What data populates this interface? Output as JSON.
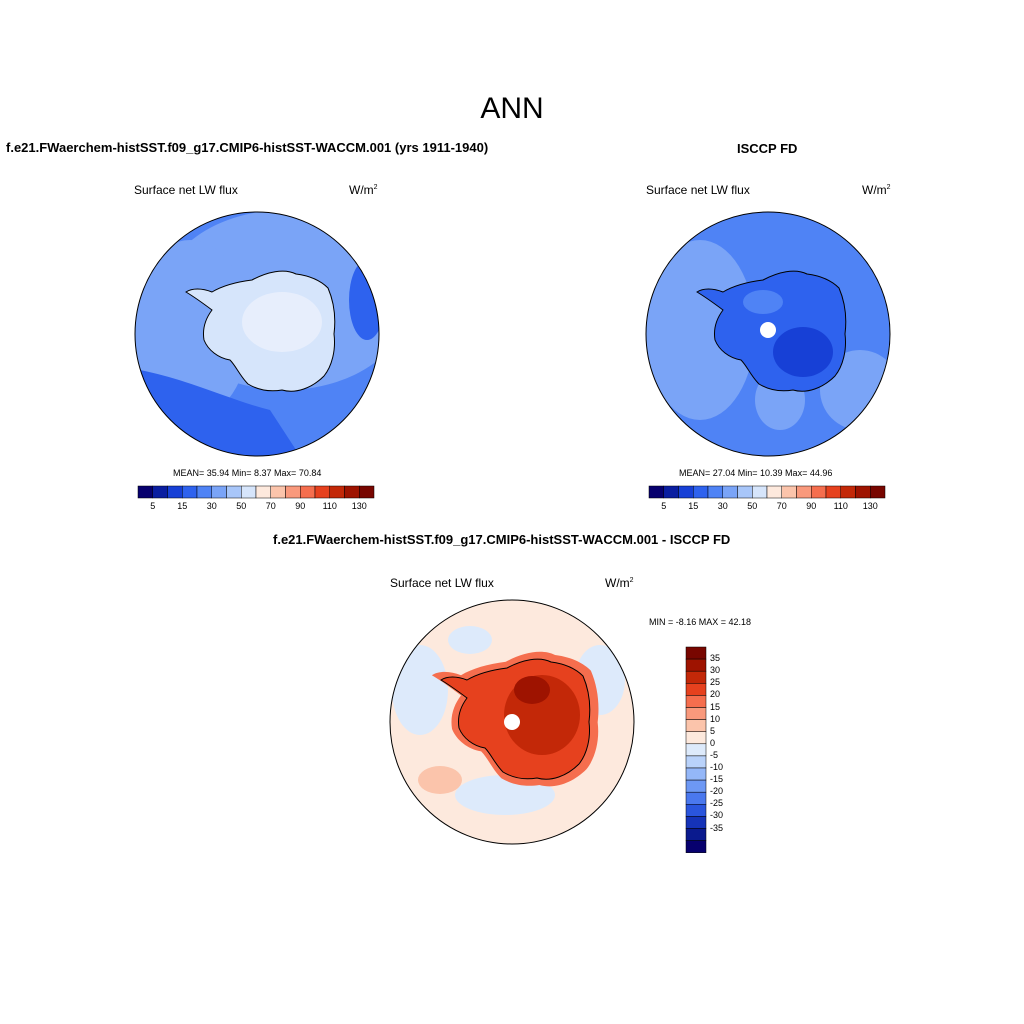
{
  "page": {
    "title": "ANN"
  },
  "panels": {
    "model": {
      "title": "f.e21.FWaerchem-histSST.f09_g17.CMIP6-histSST-WACCM.001 (yrs 1911-1940)",
      "variable": "Surface net LW flux",
      "units_base": "W/m",
      "units_exp": "2",
      "stats": "MEAN=  35.94  Min=   8.37  Max=  70.84"
    },
    "obs": {
      "title": "ISCCP FD",
      "variable": "Surface net LW flux",
      "units_base": "W/m",
      "units_exp": "2",
      "stats": "MEAN=  27.04  Min=  10.39  Max=  44.96"
    },
    "diff": {
      "title": "f.e21.FWaerchem-histSST.f09_g17.CMIP6-histSST-WACCM.001 - ISCCP FD",
      "variable": "Surface net LW flux",
      "units_base": "W/m",
      "units_exp": "2",
      "stats": "MIN =  -8.16 MAX =  42.18"
    }
  },
  "colorbars": {
    "horizontal": {
      "colors": [
        "#07006e",
        "#0a1ea0",
        "#1740d6",
        "#2e62ee",
        "#4f83f5",
        "#7aa4f7",
        "#a8c6f9",
        "#d6e5fb",
        "#fde9dd",
        "#fbc4ab",
        "#f9997c",
        "#f56e4e",
        "#e6411e",
        "#c32808",
        "#9e1300",
        "#780600"
      ],
      "labels": [
        "5",
        "15",
        "30",
        "50",
        "70",
        "90",
        "110",
        "130"
      ]
    },
    "vertical": {
      "colors": [
        "#780600",
        "#9e1300",
        "#c32808",
        "#e6411e",
        "#f56e4e",
        "#f9997c",
        "#fbc4ab",
        "#fde9dd",
        "#ddeafb",
        "#b9d2fa",
        "#94b7f8",
        "#6d98f4",
        "#4a78ee",
        "#2a55dd",
        "#1533b8",
        "#0a1a8e",
        "#07006e"
      ],
      "labels": [
        "35",
        "30",
        "25",
        "20",
        "15",
        "10",
        "5",
        "0",
        "-5",
        "-10",
        "-15",
        "-20",
        "-25",
        "-30",
        "-35"
      ]
    }
  }
}
